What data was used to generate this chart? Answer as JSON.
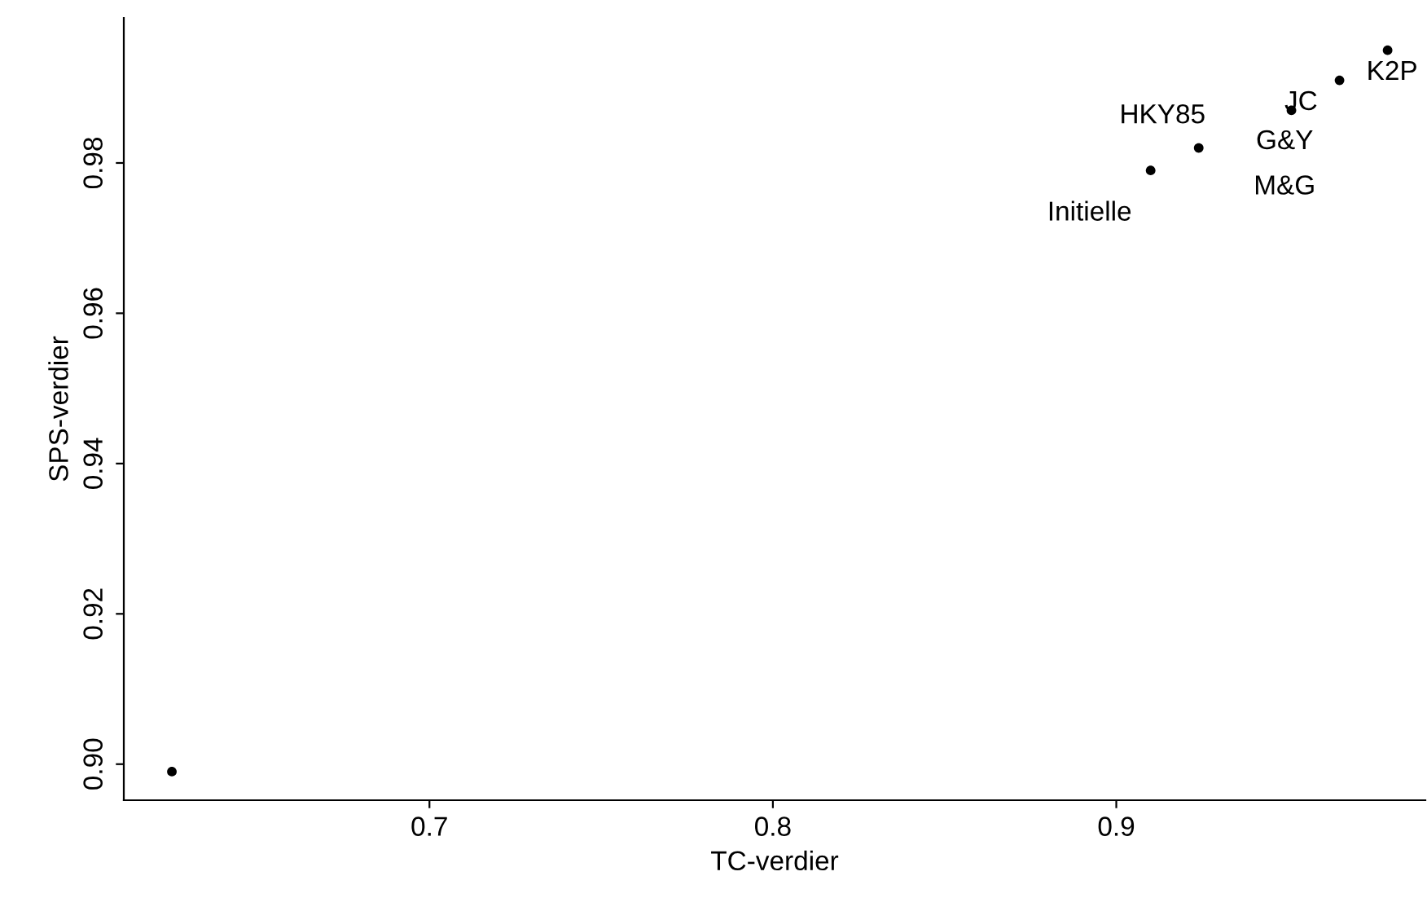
{
  "chart_data": {
    "type": "scatter",
    "xlabel": "TC-verdier",
    "ylabel": "SPS-verdier",
    "x": [
      0.625,
      0.91,
      0.924,
      0.951,
      0.965,
      0.979
    ],
    "values": [
      0.899,
      0.979,
      0.982,
      0.987,
      0.991,
      0.995
    ],
    "color": "#000000",
    "marker": "circle",
    "xlim": [
      0.611,
      0.99
    ],
    "ylim": [
      0.8952,
      0.9993
    ],
    "xticks": [
      0.7,
      0.8,
      0.9
    ],
    "yticks": [
      {
        "value": 0.9,
        "label": "0.90"
      },
      {
        "value": 0.92,
        "label": "0.92"
      },
      {
        "value": 0.94,
        "label": "0.94"
      },
      {
        "value": 0.96,
        "label": "0.96"
      },
      {
        "value": 0.98,
        "label": "0.98"
      }
    ],
    "annotations": [
      {
        "text": "Initielle",
        "x": 0.91,
        "y": 0.979
      },
      {
        "text": "HKY85",
        "x": 0.924,
        "y": 0.982
      },
      {
        "text": "G&Y",
        "x": 0.951,
        "y": 0.987
      },
      {
        "text": "M&G",
        "x": 0.951,
        "y": 0.987
      },
      {
        "text": "JC",
        "x": 0.965,
        "y": 0.991
      },
      {
        "text": "K2P",
        "x": 0.979,
        "y": 0.995
      }
    ],
    "grid": false
  }
}
